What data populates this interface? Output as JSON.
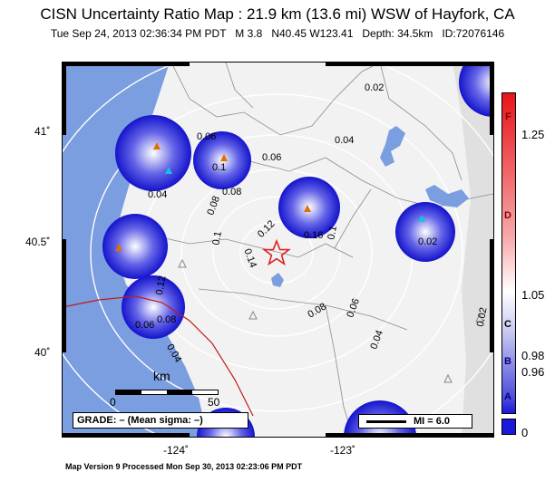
{
  "title": "CISN Uncertainty Ratio Map : 21.9 km (13.6 mi) WSW of Hayfork, CA",
  "subtitle": "Tue Sep 24, 2013 02:36:34 PM PDT   M 3.8   N40.45 W123.41   Depth: 34.5km   ID:72076146",
  "footer": "Map Version 9 Processed Mon Sep 30, 2013 02:23:06 PM PDT",
  "axes": {
    "lat_labels": [
      "41˚",
      "40.5˚",
      "40˚"
    ],
    "lon_labels": [
      "-124˚",
      "-123˚"
    ]
  },
  "contour_labels": [
    "0.02",
    "0.04",
    "0.06",
    "0.1",
    "0.08",
    "0.04",
    "0.06",
    "0.08",
    "0.12",
    "0.1",
    "0.14",
    "0.16",
    "0.1",
    "0.02",
    "0.12",
    "0.08",
    "0.06",
    "0.08",
    "0.04",
    "0.06",
    "0.04",
    "0.02"
  ],
  "colorbar": {
    "letters": [
      "F",
      "D",
      "C",
      "B",
      "A"
    ],
    "values": [
      "1.25",
      "1.05",
      "0.98",
      "0.96",
      "0"
    ],
    "colors": {
      "top": "#e8141a",
      "mid": "#ffffff",
      "bottom": "#1a1adb"
    }
  },
  "scale": {
    "title": "km",
    "start": "0",
    "end": "50"
  },
  "grade": "GRADE: – (Mean sigma: –)",
  "legend": {
    "mi": "MI = 6.0"
  },
  "colors": {
    "ocean": "#7a9ee0",
    "lake": "#7a9ee0",
    "station_blue": "#1a1acc",
    "epicenter": "#dd2222"
  }
}
